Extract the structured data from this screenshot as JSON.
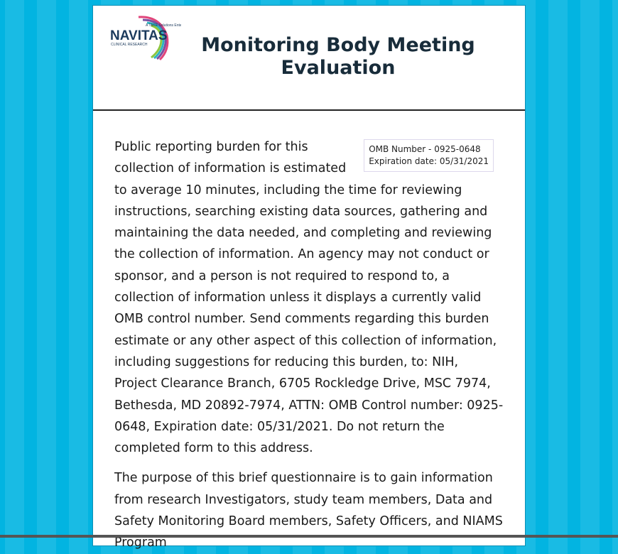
{
  "header": {
    "logo": {
      "name": "NAVITAS",
      "tagline": "A TAKE Solutions Enterprise",
      "subtitle": "CLINICAL RESEARCH"
    },
    "title": "Monitoring Body Meeting Evaluation"
  },
  "omb": {
    "number": "OMB Number - 0925-0648",
    "expiration": "Expiration date: 05/31/2021"
  },
  "content": {
    "paragraphs": [
      "Public reporting burden for this collection of information is estimated to average 10 minutes, including the time for reviewing instructions, searching existing data sources, gathering and maintaining the data needed, and completing and reviewing the collection of information. An agency may not conduct or sponsor, and a person is not required to respond to, a collection of information unless it displays a currently valid OMB control number. Send comments regarding this burden estimate or any other aspect of this collection of information, including suggestions for reducing this burden, to: NIH, Project Clearance Branch, 6705 Rockledge Drive, MSC 7974, Bethesda, MD 20892-7974, ATTN: OMB Control number: 0925-0648, Expiration date: 05/31/2021. Do not return the completed form to this address.",
      "The purpose of this brief questionnaire is to gain information from research Investigators, study team members, Data and Safety Monitoring Board members, Safety Officers, and NIAMS Program"
    ]
  }
}
